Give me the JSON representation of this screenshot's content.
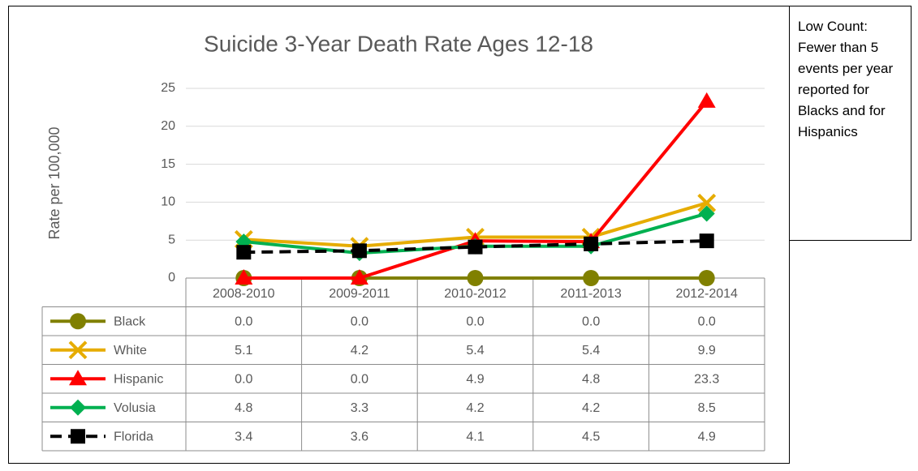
{
  "chart_data": {
    "type": "line",
    "title": "Suicide 3-Year Death Rate Ages 12-18",
    "y_label": "Rate per 100,000",
    "annotation": "Low Count: Fewer than 5 events per year reported for Blacks and for Hispanics",
    "categories": [
      "2008-2010",
      "2009-2011",
      "2010-2012",
      "2011-2013",
      "2012-2014"
    ],
    "ylim": [
      0,
      25
    ],
    "yticks": [
      0,
      5,
      10,
      15,
      20,
      25
    ],
    "grid": true,
    "data_table": true,
    "series": [
      {
        "name": "Black",
        "color": "#808000",
        "marker": "circle",
        "values": [
          0,
          0,
          0,
          0,
          0
        ],
        "value_labels": [
          "0.0",
          "0.0",
          "0.0",
          "0.0",
          "0.0"
        ]
      },
      {
        "name": "White",
        "color": "#e6ac00",
        "marker": "x",
        "values": [
          5.1,
          4.2,
          5.4,
          5.4,
          9.9
        ],
        "value_labels": [
          "5.1",
          "4.2",
          "5.4",
          "5.4",
          "9.9"
        ]
      },
      {
        "name": "Hispanic",
        "color": "#ff0000",
        "marker": "triangle",
        "values": [
          0,
          0,
          4.9,
          4.8,
          23.3
        ],
        "value_labels": [
          "0.0",
          "0.0",
          "4.9",
          "4.8",
          "23.3"
        ]
      },
      {
        "name": "Volusia",
        "color": "#00b050",
        "marker": "diamond",
        "values": [
          4.8,
          3.3,
          4.2,
          4.2,
          8.5
        ],
        "value_labels": [
          "4.8",
          "3.3",
          "4.2",
          "4.2",
          "8.5"
        ]
      },
      {
        "name": "Florida",
        "color": "#000000",
        "marker": "square",
        "dashed": true,
        "values": [
          3.4,
          3.6,
          4.1,
          4.5,
          4.9
        ],
        "value_labels": [
          "3.4",
          "3.6",
          "4.1",
          "4.5",
          "4.9"
        ]
      }
    ]
  }
}
